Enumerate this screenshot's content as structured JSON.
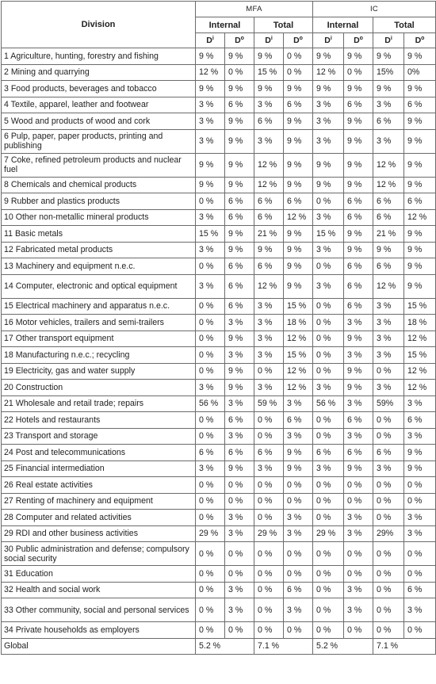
{
  "header": {
    "division": "Division",
    "groups": [
      "MFA",
      "IC"
    ],
    "subgroups": [
      "Internal",
      "Total",
      "Internal",
      "Total"
    ],
    "d_labels": [
      {
        "base": "D",
        "sup": "i"
      },
      {
        "base": "D",
        "sup": "o"
      },
      {
        "base": "D",
        "sup": "i"
      },
      {
        "base": "D",
        "sup": "o"
      },
      {
        "base": "D",
        "sup": "i"
      },
      {
        "base": "D",
        "sup": "o"
      },
      {
        "base": "D",
        "sup": "i"
      },
      {
        "base": "D",
        "sup": "o"
      }
    ]
  },
  "rows": [
    {
      "label": "1 Agriculture, hunting, forestry and fishing",
      "values": [
        "9 %",
        "9 %",
        "9 %",
        "0 %",
        "9 %",
        "9 %",
        "9 %",
        "9 %"
      ],
      "tall": false
    },
    {
      "label": "2 Mining and quarrying",
      "values": [
        "12 %",
        "0 %",
        "15 %",
        "0 %",
        "12 %",
        "0 %",
        "15%",
        "0%"
      ],
      "tall": false
    },
    {
      "label": "3 Food products, beverages and tobacco",
      "values": [
        "9 %",
        "9 %",
        "9 %",
        "9 %",
        "9 %",
        "9 %",
        "9 %",
        "9 %"
      ],
      "tall": false
    },
    {
      "label": "4 Textile, apparel, leather and footwear",
      "values": [
        "3 %",
        "6 %",
        "3 %",
        "6 %",
        "3 %",
        "6 %",
        "3 %",
        "6 %"
      ],
      "tall": false
    },
    {
      "label": "5 Wood and products of wood and cork",
      "values": [
        "3 %",
        "9 %",
        "6 %",
        "9 %",
        "3 %",
        "9 %",
        "6 %",
        "9 %"
      ],
      "tall": false
    },
    {
      "label": "6 Pulp, paper, paper products, printing and publishing",
      "values": [
        "3 %",
        "9 %",
        "3 %",
        "9 %",
        "3 %",
        "9 %",
        "3 %",
        "9 %"
      ],
      "tall": true
    },
    {
      "label": "7 Coke, refined petroleum products and nuclear fuel",
      "values": [
        "9 %",
        "9 %",
        "12 %",
        "9 %",
        "9 %",
        "9 %",
        "12 %",
        "9 %"
      ],
      "tall": true
    },
    {
      "label": "8 Chemicals and chemical products",
      "values": [
        "9 %",
        "9 %",
        "12 %",
        "9 %",
        "9 %",
        "9 %",
        "12 %",
        "9 %"
      ],
      "tall": false
    },
    {
      "label": "9 Rubber and plastics products",
      "values": [
        "0 %",
        "6 %",
        "6 %",
        "6 %",
        "0 %",
        "6 %",
        "6 %",
        "6 %"
      ],
      "tall": false
    },
    {
      "label": "10 Other non-metallic mineral products",
      "values": [
        "3 %",
        "6 %",
        "6 %",
        "12 %",
        "3 %",
        "6 %",
        "6 %",
        "12 %"
      ],
      "tall": false
    },
    {
      "label": "11 Basic metals",
      "values": [
        "15 %",
        "9 %",
        "21 %",
        "9 %",
        "15 %",
        "9 %",
        "21 %",
        "9 %"
      ],
      "tall": false
    },
    {
      "label": "12 Fabricated metal products",
      "values": [
        "3 %",
        "9 %",
        "9 %",
        "9 %",
        "3 %",
        "9 %",
        "9 %",
        "9 %"
      ],
      "tall": false
    },
    {
      "label": "13 Machinery and equipment n.e.c.",
      "values": [
        "0 %",
        "6 %",
        "6 %",
        "9 %",
        "0 %",
        "6 %",
        "6 %",
        "9 %"
      ],
      "tall": false
    },
    {
      "label": "14 Computer, electronic and optical equipment",
      "values": [
        "3 %",
        "6 %",
        "12 %",
        "9 %",
        "3 %",
        "6 %",
        "12 %",
        "9 %"
      ],
      "tall": true
    },
    {
      "label": "15 Electrical machinery and apparatus n.e.c.",
      "values": [
        "0 %",
        "6 %",
        "3 %",
        "15 %",
        "0 %",
        "6 %",
        "3 %",
        "15 %"
      ],
      "tall": false
    },
    {
      "label": "16 Motor vehicles, trailers and semi-trailers",
      "values": [
        "0 %",
        "3 %",
        "3 %",
        "18 %",
        "0 %",
        "3 %",
        "3 %",
        "18 %"
      ],
      "tall": false
    },
    {
      "label": "17 Other transport equipment",
      "values": [
        "0 %",
        "9 %",
        "3 %",
        "12 %",
        "0 %",
        "9 %",
        "3 %",
        "12 %"
      ],
      "tall": false
    },
    {
      "label": "18 Manufacturing n.e.c.; recycling",
      "values": [
        "0 %",
        "3 %",
        "3 %",
        "15 %",
        "0 %",
        "3 %",
        "3 %",
        "15 %"
      ],
      "tall": false
    },
    {
      "label": "19 Electricity, gas and water supply",
      "values": [
        "0 %",
        "9 %",
        "0 %",
        "12 %",
        "0 %",
        "9 %",
        "0 %",
        "12 %"
      ],
      "tall": false
    },
    {
      "label": "20 Construction",
      "values": [
        "3 %",
        "9 %",
        "3 %",
        "12 %",
        "3 %",
        "9 %",
        "3 %",
        "12 %"
      ],
      "tall": false
    },
    {
      "label": "21 Wholesale and retail trade; repairs",
      "values": [
        "56 %",
        "3 %",
        "59 %",
        "3 %",
        "56 %",
        "3 %",
        "59%",
        "3 %"
      ],
      "tall": false
    },
    {
      "label": "22 Hotels and restaurants",
      "values": [
        "0 %",
        "6 %",
        "0 %",
        "6 %",
        "0 %",
        "6 %",
        "0 %",
        "6 %"
      ],
      "tall": false
    },
    {
      "label": "23 Transport and storage",
      "values": [
        "0 %",
        "3 %",
        "0 %",
        "3 %",
        "0 %",
        "3 %",
        "0 %",
        "3 %"
      ],
      "tall": false
    },
    {
      "label": "24 Post and telecommunications",
      "values": [
        "6 %",
        "6 %",
        "6 %",
        "9 %",
        "6 %",
        "6 %",
        "6 %",
        "9 %"
      ],
      "tall": false
    },
    {
      "label": "25 Financial intermediation",
      "values": [
        "3 %",
        "9 %",
        "3 %",
        "9 %",
        "3 %",
        "9 %",
        "3 %",
        "9 %"
      ],
      "tall": false
    },
    {
      "label": "26 Real estate activities",
      "values": [
        "0 %",
        "0 %",
        "0 %",
        "0 %",
        "0 %",
        "0 %",
        "0 %",
        "0 %"
      ],
      "tall": false
    },
    {
      "label": "27 Renting of machinery and equipment",
      "values": [
        "0 %",
        "0 %",
        "0 %",
        "0 %",
        "0 %",
        "0 %",
        "0 %",
        "0 %"
      ],
      "tall": false
    },
    {
      "label": "28 Computer and related activities",
      "values": [
        "0 %",
        "3 %",
        "0 %",
        "3 %",
        "0 %",
        "3 %",
        "0 %",
        "3 %"
      ],
      "tall": false
    },
    {
      "label": "29 RDI and other business activities",
      "values": [
        "29 %",
        "3 %",
        "29 %",
        "3 %",
        "29 %",
        "3 %",
        "29%",
        "3 %"
      ],
      "tall": false
    },
    {
      "label": "30 Public administration and defense; compulsory social security",
      "values": [
        "0 %",
        "0 %",
        "0 %",
        "0 %",
        "0 %",
        "0 %",
        "0 %",
        "0 %"
      ],
      "tall": true
    },
    {
      "label": "31 Education",
      "values": [
        "0 %",
        "0 %",
        "0 %",
        "0 %",
        "0 %",
        "0 %",
        "0 %",
        "0 %"
      ],
      "tall": false
    },
    {
      "label": "32 Health and social work",
      "values": [
        "0 %",
        "3 %",
        "0 %",
        "6 %",
        "0 %",
        "3 %",
        "0 %",
        "6 %"
      ],
      "tall": false
    },
    {
      "label": "33 Other community, social and personal services",
      "values": [
        "0 %",
        "3 %",
        "0 %",
        "3 %",
        "0 %",
        "3 %",
        "0 %",
        "3 %"
      ],
      "tall": true
    },
    {
      "label": "34 Private households as employers",
      "values": [
        "0 %",
        "0 %",
        "0 %",
        "0 %",
        "0 %",
        "0 %",
        "0 %",
        "0 %"
      ],
      "tall": false
    }
  ],
  "global": {
    "label": "Global",
    "values": [
      "5.2 %",
      "7.1 %",
      "5.2 %",
      "7.1 %"
    ]
  }
}
